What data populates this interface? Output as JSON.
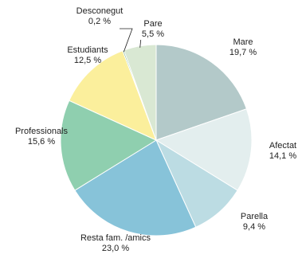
{
  "chart_data": {
    "type": "pie",
    "title": "",
    "slices": [
      {
        "label": "Mare",
        "value": 19.7,
        "value_text": "19,7 %",
        "color": "#b3c9c9"
      },
      {
        "label": "Afectat",
        "value": 14.1,
        "value_text": "14,1 %",
        "color": "#e3eeee"
      },
      {
        "label": "Parella",
        "value": 9.4,
        "value_text": "9,4 %",
        "color": "#bcdce3"
      },
      {
        "label": "Resta fam. /amics",
        "value": 23.0,
        "value_text": "23,0 %",
        "color": "#87c3d9"
      },
      {
        "label": "Professionals",
        "value": 15.6,
        "value_text": "15,6 %",
        "color": "#8fcfaf"
      },
      {
        "label": "Estudiants",
        "value": 12.5,
        "value_text": "12,5 %",
        "color": "#fbef9c"
      },
      {
        "label": "Desconegut",
        "value": 0.2,
        "value_text": "0,2 %",
        "color": "#2f8a5a"
      },
      {
        "label": "Pare",
        "value": 5.5,
        "value_text": "5,5 %",
        "color": "#d9e8d3"
      }
    ]
  }
}
